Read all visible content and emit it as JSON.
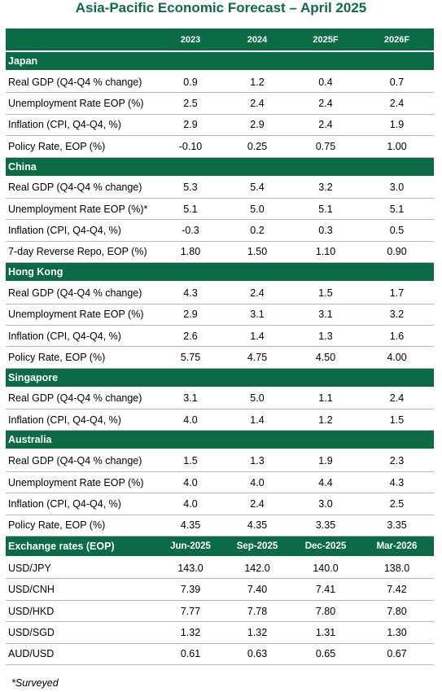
{
  "title": "Asia-Pacific Economic Forecast – April 2025",
  "header": {
    "label": "",
    "years": [
      "2023",
      "2024",
      "2025F",
      "2026F"
    ]
  },
  "sections": [
    {
      "name": "Japan",
      "rows": [
        {
          "label": "Real GDP (Q4-Q4 % change)",
          "values": [
            "0.9",
            "1.2",
            "0.4",
            "0.7"
          ]
        },
        {
          "label": "Unemployment Rate EOP (%)",
          "values": [
            "2.5",
            "2.4",
            "2.4",
            "2.4"
          ]
        },
        {
          "label": "Inflation (CPI, Q4-Q4, %)",
          "values": [
            "2.9",
            "2.9",
            "2.4",
            "1.9"
          ]
        },
        {
          "label": "Policy Rate, EOP (%)",
          "values": [
            "-0.10",
            "0.25",
            "0.75",
            "1.00"
          ]
        }
      ]
    },
    {
      "name": "China",
      "rows": [
        {
          "label": "Real GDP (Q4-Q4 % change)",
          "values": [
            "5.3",
            "5.4",
            "3.2",
            "3.0"
          ]
        },
        {
          "label": "Unemployment Rate EOP (%)*",
          "values": [
            "5.1",
            "5.0",
            "5.1",
            "5.1"
          ]
        },
        {
          "label": "Inflation (CPI, Q4-Q4, %)",
          "values": [
            "-0.3",
            "0.2",
            "0.3",
            "0.5"
          ]
        },
        {
          "label": "7-day Reverse Repo, EOP (%)",
          "values": [
            "1.80",
            "1.50",
            "1.10",
            "0.90"
          ]
        }
      ]
    },
    {
      "name": "Hong Kong",
      "rows": [
        {
          "label": "Real GDP (Q4-Q4 % change)",
          "values": [
            "4.3",
            "2.4",
            "1.5",
            "1.7"
          ]
        },
        {
          "label": "Unemployment Rate EOP (%)",
          "values": [
            "2.9",
            "3.1",
            "3.1",
            "3.2"
          ]
        },
        {
          "label": "Inflation (CPI, Q4-Q4, %)",
          "values": [
            "2.6",
            "1.4",
            "1.3",
            "1.6"
          ]
        },
        {
          "label": "Policy Rate, EOP (%)",
          "values": [
            "5.75",
            "4.75",
            "4.50",
            "4.00"
          ]
        }
      ]
    },
    {
      "name": "Singapore",
      "rows": [
        {
          "label": "Real GDP (Q4-Q4 % change)",
          "values": [
            "3.1",
            "5.0",
            "1.1",
            "2.4"
          ]
        },
        {
          "label": "Inflation (CPI, Q4-Q4, %)",
          "values": [
            "4.0",
            "1.4",
            "1.2",
            "1.5"
          ]
        }
      ]
    },
    {
      "name": "Australia",
      "rows": [
        {
          "label": "Real GDP (Q4-Q4 % change)",
          "values": [
            "1.5",
            "1.3",
            "1.9",
            "2.3"
          ]
        },
        {
          "label": "Unemployment Rate EOP (%)",
          "values": [
            "4.0",
            "4.0",
            "4.4",
            "4.3"
          ]
        },
        {
          "label": "Inflation (CPI, Q4-Q4, %)",
          "values": [
            "4.0",
            "2.4",
            "3.0",
            "2.5"
          ]
        },
        {
          "label": "Policy Rate, EOP (%)",
          "values": [
            "4.35",
            "4.35",
            "3.35",
            "3.35"
          ]
        }
      ]
    }
  ],
  "fx": {
    "label": "Exchange rates (EOP)",
    "periods": [
      "Jun-2025",
      "Sep-2025",
      "Dec-2025",
      "Mar-2026"
    ],
    "rows": [
      {
        "label": "USD/JPY",
        "values": [
          "143.0",
          "142.0",
          "140.0",
          "138.0"
        ]
      },
      {
        "label": "USD/CNH",
        "values": [
          "7.39",
          "7.40",
          "7.41",
          "7.42"
        ]
      },
      {
        "label": "USD/HKD",
        "values": [
          "7.77",
          "7.78",
          "7.80",
          "7.80"
        ]
      },
      {
        "label": "USD/SGD",
        "values": [
          "1.32",
          "1.32",
          "1.31",
          "1.30"
        ]
      },
      {
        "label": "AUD/USD",
        "values": [
          "0.61",
          "0.63",
          "0.65",
          "0.67"
        ]
      }
    ]
  },
  "footnote": "*Surveyed",
  "colors": {
    "header_green": "#0b6b45",
    "title_green": "#0b6b45",
    "row_border": "#b9b9b9"
  }
}
